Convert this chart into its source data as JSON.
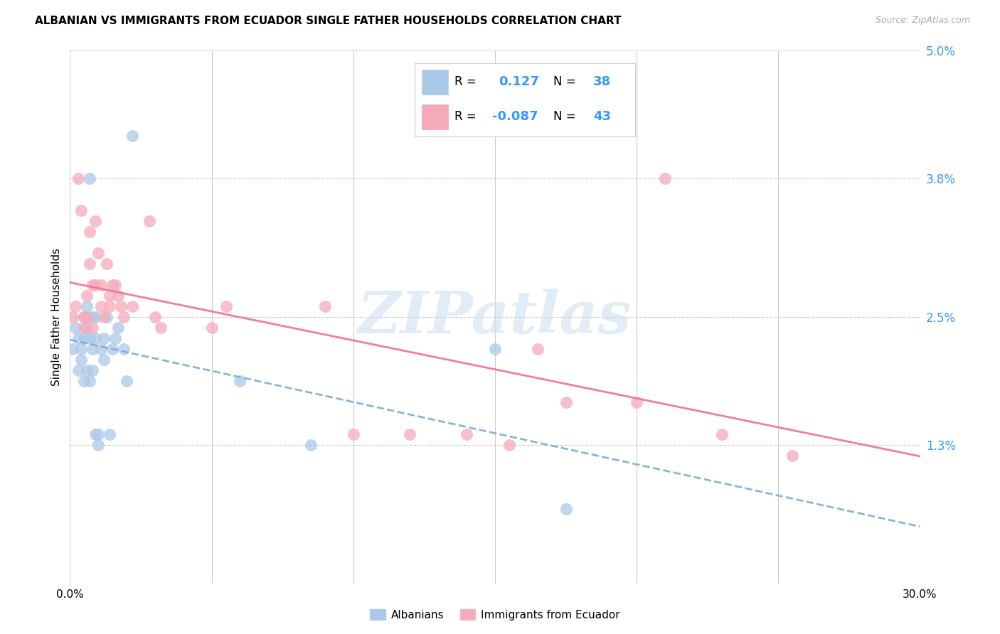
{
  "title": "ALBANIAN VS IMMIGRANTS FROM ECUADOR SINGLE FATHER HOUSEHOLDS CORRELATION CHART",
  "source": "Source: ZipAtlas.com",
  "ylabel": "Single Father Households",
  "xlim": [
    0.0,
    0.3
  ],
  "ylim": [
    0.0,
    0.05
  ],
  "yticks": [
    0.013,
    0.025,
    0.038,
    0.05
  ],
  "ytick_labels": [
    "1.3%",
    "2.5%",
    "3.8%",
    "5.0%"
  ],
  "xticks": [
    0.0,
    0.05,
    0.1,
    0.15,
    0.2,
    0.25,
    0.3
  ],
  "xtick_labels": [
    "0.0%",
    "",
    "",
    "",
    "",
    "",
    "30.0%"
  ],
  "albanian_R": 0.127,
  "albanian_N": 38,
  "ecuador_R": -0.087,
  "ecuador_N": 43,
  "albanian_color": "#aac9e8",
  "ecuador_color": "#f5aaba",
  "albanian_line_color": "#7aaed6",
  "ecuador_line_color": "#f07090",
  "watermark": "ZIPatlas",
  "albanian_x": [
    0.001,
    0.002,
    0.003,
    0.003,
    0.004,
    0.004,
    0.005,
    0.005,
    0.005,
    0.006,
    0.006,
    0.006,
    0.007,
    0.007,
    0.007,
    0.008,
    0.008,
    0.008,
    0.009,
    0.009,
    0.009,
    0.01,
    0.01,
    0.011,
    0.012,
    0.012,
    0.013,
    0.014,
    0.015,
    0.016,
    0.017,
    0.019,
    0.02,
    0.022,
    0.06,
    0.085,
    0.15,
    0.175
  ],
  "albanian_y": [
    0.022,
    0.024,
    0.02,
    0.023,
    0.021,
    0.022,
    0.019,
    0.023,
    0.025,
    0.02,
    0.024,
    0.026,
    0.019,
    0.023,
    0.038,
    0.022,
    0.02,
    0.025,
    0.014,
    0.023,
    0.025,
    0.014,
    0.013,
    0.022,
    0.023,
    0.021,
    0.025,
    0.014,
    0.022,
    0.023,
    0.024,
    0.022,
    0.019,
    0.042,
    0.019,
    0.013,
    0.022,
    0.007
  ],
  "ecuador_x": [
    0.001,
    0.002,
    0.003,
    0.004,
    0.005,
    0.005,
    0.006,
    0.006,
    0.007,
    0.007,
    0.008,
    0.008,
    0.009,
    0.009,
    0.01,
    0.011,
    0.011,
    0.012,
    0.013,
    0.014,
    0.014,
    0.015,
    0.016,
    0.017,
    0.018,
    0.019,
    0.022,
    0.028,
    0.03,
    0.032,
    0.05,
    0.055,
    0.09,
    0.1,
    0.12,
    0.14,
    0.155,
    0.165,
    0.175,
    0.2,
    0.21,
    0.23,
    0.255
  ],
  "ecuador_y": [
    0.025,
    0.026,
    0.038,
    0.035,
    0.025,
    0.024,
    0.025,
    0.027,
    0.033,
    0.03,
    0.028,
    0.024,
    0.034,
    0.028,
    0.031,
    0.028,
    0.026,
    0.025,
    0.03,
    0.026,
    0.027,
    0.028,
    0.028,
    0.027,
    0.026,
    0.025,
    0.026,
    0.034,
    0.025,
    0.024,
    0.024,
    0.026,
    0.026,
    0.014,
    0.014,
    0.014,
    0.013,
    0.022,
    0.017,
    0.017,
    0.038,
    0.014,
    0.012
  ]
}
